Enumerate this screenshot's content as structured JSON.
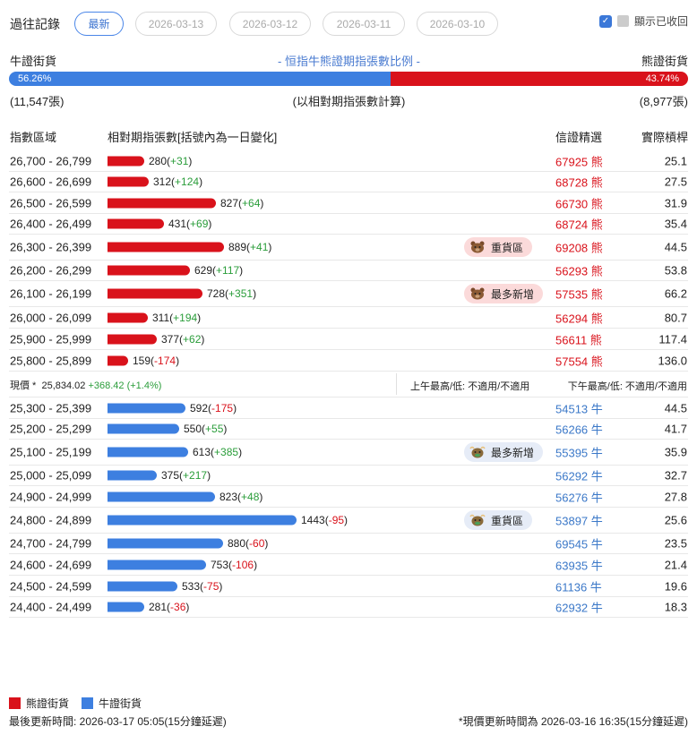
{
  "header": {
    "history_label": "過往記錄",
    "date_tabs": [
      "最新",
      "2026-03-13",
      "2026-03-12",
      "2026-03-11",
      "2026-03-10"
    ],
    "show_recovered_label": "顯示已收回"
  },
  "ratio": {
    "bull_label": "牛證街貨",
    "title": "- 恒指牛熊證期指張數比例 -",
    "bear_label": "熊證街貨",
    "bull_pct": "56.26%",
    "bear_pct": "43.74%",
    "bull_fraction": 0.5626,
    "bull_count": "(11,547張)",
    "note": "(以相對期指張數計算)",
    "bear_count": "(8,977張)"
  },
  "table_header": {
    "range": "指數區域",
    "count": "相對期指張數[括號內為一日變化]",
    "pick": "信證精選",
    "leverage": "實際槓桿"
  },
  "bear_rows": [
    {
      "range": "26,700 - 26,799",
      "count": 280,
      "chg": "+31",
      "code": "67925 熊",
      "lev": "25.1",
      "tag": ""
    },
    {
      "range": "26,600 - 26,699",
      "count": 312,
      "chg": "+124",
      "code": "68728 熊",
      "lev": "27.5",
      "tag": ""
    },
    {
      "range": "26,500 - 26,599",
      "count": 827,
      "chg": "+64",
      "code": "66730 熊",
      "lev": "31.9",
      "tag": ""
    },
    {
      "range": "26,400 - 26,499",
      "count": 431,
      "chg": "+69",
      "code": "68724 熊",
      "lev": "35.4",
      "tag": ""
    },
    {
      "range": "26,300 - 26,399",
      "count": 889,
      "chg": "+41",
      "code": "69208 熊",
      "lev": "44.5",
      "tag": "重貨區"
    },
    {
      "range": "26,200 - 26,299",
      "count": 629,
      "chg": "+117",
      "code": "56293 熊",
      "lev": "53.8",
      "tag": ""
    },
    {
      "range": "26,100 - 26,199",
      "count": 728,
      "chg": "+351",
      "code": "57535 熊",
      "lev": "66.2",
      "tag": "最多新增"
    },
    {
      "range": "26,000 - 26,099",
      "count": 311,
      "chg": "+194",
      "code": "56294 熊",
      "lev": "80.7",
      "tag": ""
    },
    {
      "range": "25,900 - 25,999",
      "count": 377,
      "chg": "+62",
      "code": "56611 熊",
      "lev": "117.4",
      "tag": ""
    },
    {
      "range": "25,800 - 25,899",
      "count": 159,
      "chg": "-174",
      "code": "57554 熊",
      "lev": "136.0",
      "tag": ""
    }
  ],
  "price": {
    "label": "現價 *",
    "value": "25,834.02",
    "change": "+368.42 (+1.4%)",
    "am": "上午最高/低: 不適用/不適用",
    "pm": "下午最高/低: 不適用/不適用"
  },
  "bull_rows": [
    {
      "range": "25,300 - 25,399",
      "count": 592,
      "chg": "-175",
      "code": "54513 牛",
      "lev": "44.5",
      "tag": ""
    },
    {
      "range": "25,200 - 25,299",
      "count": 550,
      "chg": "+55",
      "code": "56266 牛",
      "lev": "41.7",
      "tag": ""
    },
    {
      "range": "25,100 - 25,199",
      "count": 613,
      "chg": "+385",
      "code": "55395 牛",
      "lev": "35.9",
      "tag": "最多新增"
    },
    {
      "range": "25,000 - 25,099",
      "count": 375,
      "chg": "+217",
      "code": "56292 牛",
      "lev": "32.7",
      "tag": ""
    },
    {
      "range": "24,900 - 24,999",
      "count": 823,
      "chg": "+48",
      "code": "56276 牛",
      "lev": "27.8",
      "tag": ""
    },
    {
      "range": "24,800 - 24,899",
      "count": 1443,
      "chg": "-95",
      "code": "53897 牛",
      "lev": "25.6",
      "tag": "重貨區"
    },
    {
      "range": "24,700 - 24,799",
      "count": 880,
      "chg": "-60",
      "code": "69545 牛",
      "lev": "23.5",
      "tag": ""
    },
    {
      "range": "24,600 - 24,699",
      "count": 753,
      "chg": "-106",
      "code": "63935 牛",
      "lev": "21.4",
      "tag": ""
    },
    {
      "range": "24,500 - 24,599",
      "count": 533,
      "chg": "-75",
      "code": "61136 牛",
      "lev": "19.6",
      "tag": ""
    },
    {
      "range": "24,400 - 24,499",
      "count": 281,
      "chg": "-36",
      "code": "62932 牛",
      "lev": "18.3",
      "tag": ""
    }
  ],
  "legend": {
    "bear": "熊證街貨",
    "bull": "牛證街貨"
  },
  "footer": {
    "updated": "最後更新時間: 2026-03-17 05:05(15分鐘延遲)",
    "price_updated": "*現價更新時間為 2026-03-16 16:35(15分鐘延遲)"
  },
  "colors": {
    "bear": "#d9121b",
    "bull": "#3d7fe0",
    "positive": "#2a9d3a"
  },
  "icons": {
    "bear_tag": "bear-icon",
    "bull_tag": "bull-icon",
    "checkbox": "checkbox-checked-icon"
  }
}
